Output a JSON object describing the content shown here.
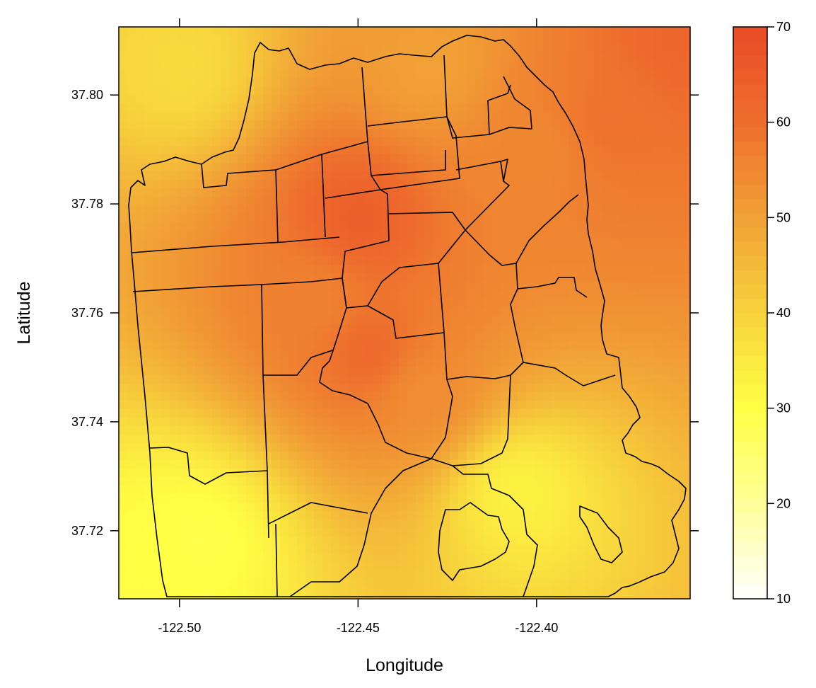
{
  "chart_data": {
    "type": "heatmap",
    "title": "",
    "xlabel": "Longitude",
    "ylabel": "Latitude",
    "xlim": [
      -122.517,
      -122.357
    ],
    "ylim": [
      37.7075,
      37.8125
    ],
    "x_ticks": [
      -122.5,
      -122.45,
      -122.4
    ],
    "x_tick_labels": [
      "-122.50",
      "-122.45",
      "-122.40"
    ],
    "y_ticks": [
      37.72,
      37.74,
      37.76,
      37.78,
      37.8
    ],
    "y_tick_labels": [
      "37.72",
      "37.74",
      "37.76",
      "37.78",
      "37.80"
    ],
    "colorbar": {
      "range": [
        10,
        70
      ],
      "ticks": [
        10,
        20,
        30,
        40,
        50,
        60,
        70
      ],
      "tick_labels": [
        "10",
        "20",
        "30",
        "40",
        "50",
        "60",
        "70"
      ],
      "colors": [
        "#ffffff",
        "#ffff99",
        "#ffff44",
        "#f7d23c",
        "#f1a136",
        "#ee6e2d",
        "#e94b27"
      ]
    },
    "hotspots": [
      {
        "lon": -122.45,
        "lat": 37.7775,
        "value": 64
      },
      {
        "lon": -122.447,
        "lat": 37.753,
        "value": 61
      },
      {
        "lon": -122.462,
        "lat": 37.762,
        "value": 56
      },
      {
        "lon": -122.432,
        "lat": 37.745,
        "value": 54
      },
      {
        "lon": -122.38,
        "lat": 37.795,
        "value": 59
      },
      {
        "lon": -122.36,
        "lat": 37.81,
        "value": 62
      },
      {
        "lon": -122.4,
        "lat": 37.79,
        "value": 55
      },
      {
        "lon": -122.43,
        "lat": 37.805,
        "value": 50
      }
    ],
    "coldspots": [
      {
        "lon": -122.495,
        "lat": 37.718,
        "value": 29
      },
      {
        "lon": -122.508,
        "lat": 37.715,
        "value": 30
      },
      {
        "lon": -122.405,
        "lat": 37.727,
        "value": 33
      },
      {
        "lon": -122.5,
        "lat": 37.805,
        "value": 38
      }
    ]
  }
}
